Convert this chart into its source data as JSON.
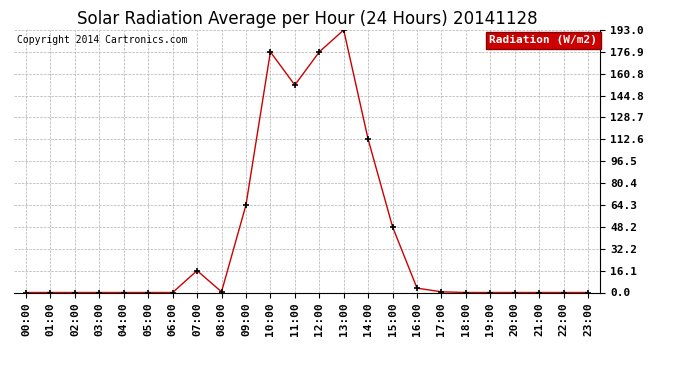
{
  "title": "Solar Radiation Average per Hour (24 Hours) 20141128",
  "copyright": "Copyright 2014 Cartronics.com",
  "legend_label": "Radiation (W/m2)",
  "hours": [
    0,
    1,
    2,
    3,
    4,
    5,
    6,
    7,
    8,
    9,
    10,
    11,
    12,
    13,
    14,
    15,
    16,
    17,
    18,
    19,
    20,
    21,
    22,
    23
  ],
  "x_labels": [
    "00:00",
    "01:00",
    "02:00",
    "03:00",
    "04:00",
    "05:00",
    "06:00",
    "07:00",
    "08:00",
    "09:00",
    "10:00",
    "11:00",
    "12:00",
    "13:00",
    "14:00",
    "15:00",
    "16:00",
    "17:00",
    "18:00",
    "19:00",
    "20:00",
    "21:00",
    "22:00",
    "23:00"
  ],
  "values": [
    0.0,
    0.0,
    0.0,
    0.0,
    0.0,
    0.0,
    0.0,
    16.1,
    0.5,
    64.3,
    176.9,
    152.5,
    176.9,
    193.0,
    112.6,
    48.2,
    3.2,
    0.5,
    0.0,
    0.0,
    0.0,
    0.0,
    0.0,
    0.0
  ],
  "line_color": "#cc0000",
  "marker_color": "#000000",
  "bg_color": "#ffffff",
  "grid_color": "#b0b0b0",
  "y_ticks": [
    0.0,
    16.1,
    32.2,
    48.2,
    64.3,
    80.4,
    96.5,
    112.6,
    128.7,
    144.8,
    160.8,
    176.9,
    193.0
  ],
  "y_max": 193.0,
  "title_fontsize": 12,
  "tick_fontsize": 8,
  "copyright_fontsize": 7,
  "legend_bg": "#cc0000",
  "legend_text_color": "#ffffff"
}
